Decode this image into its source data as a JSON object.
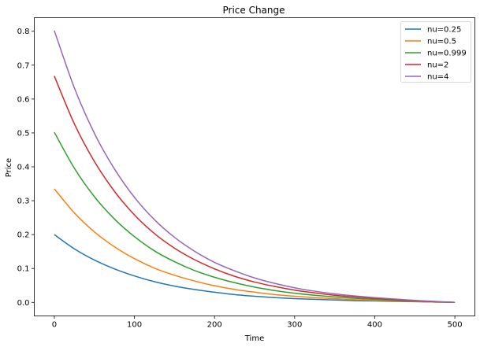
{
  "chart_data": {
    "type": "line",
    "title": "Price Change",
    "xlabel": "Time",
    "ylabel": "Price",
    "xlim": [
      -25,
      525
    ],
    "ylim": [
      -0.04,
      0.84
    ],
    "xticks": [
      0,
      100,
      200,
      300,
      400,
      500
    ],
    "yticks": [
      0.0,
      0.1,
      0.2,
      0.3,
      0.4,
      0.5,
      0.6,
      0.7,
      0.8
    ],
    "grid": false,
    "legend_position": "top-right",
    "x": [
      0,
      25,
      50,
      75,
      100,
      125,
      150,
      175,
      200,
      225,
      250,
      275,
      300,
      325,
      350,
      375,
      400,
      425,
      450,
      475,
      500
    ],
    "series": [
      {
        "name": "nu=0.25",
        "color": "#1f77b4",
        "values": [
          0.2,
          0.158,
          0.125,
          0.099,
          0.078,
          0.061,
          0.048,
          0.038,
          0.03,
          0.023,
          0.018,
          0.014,
          0.011,
          0.009,
          0.007,
          0.005,
          0.004,
          0.003,
          0.002,
          0.001,
          0.0
        ]
      },
      {
        "name": "nu=0.5",
        "color": "#ff7f0e",
        "values": [
          0.335,
          0.264,
          0.208,
          0.164,
          0.129,
          0.101,
          0.08,
          0.063,
          0.049,
          0.038,
          0.03,
          0.023,
          0.018,
          0.014,
          0.011,
          0.008,
          0.006,
          0.004,
          0.003,
          0.001,
          0.0
        ]
      },
      {
        "name": "nu=0.999",
        "color": "#2ca02c",
        "values": [
          0.502,
          0.396,
          0.312,
          0.246,
          0.194,
          0.152,
          0.12,
          0.094,
          0.074,
          0.058,
          0.045,
          0.035,
          0.027,
          0.021,
          0.016,
          0.012,
          0.009,
          0.006,
          0.004,
          0.002,
          0.0
        ]
      },
      {
        "name": "nu=2",
        "color": "#d62728",
        "values": [
          0.668,
          0.527,
          0.416,
          0.328,
          0.258,
          0.203,
          0.16,
          0.126,
          0.099,
          0.077,
          0.06,
          0.047,
          0.036,
          0.028,
          0.021,
          0.016,
          0.012,
          0.008,
          0.005,
          0.002,
          0.0
        ]
      },
      {
        "name": "nu=4",
        "color": "#9467bd",
        "values": [
          0.802,
          0.633,
          0.499,
          0.394,
          0.31,
          0.244,
          0.192,
          0.151,
          0.118,
          0.093,
          0.072,
          0.056,
          0.043,
          0.033,
          0.025,
          0.019,
          0.014,
          0.01,
          0.006,
          0.003,
          0.0
        ]
      }
    ]
  }
}
